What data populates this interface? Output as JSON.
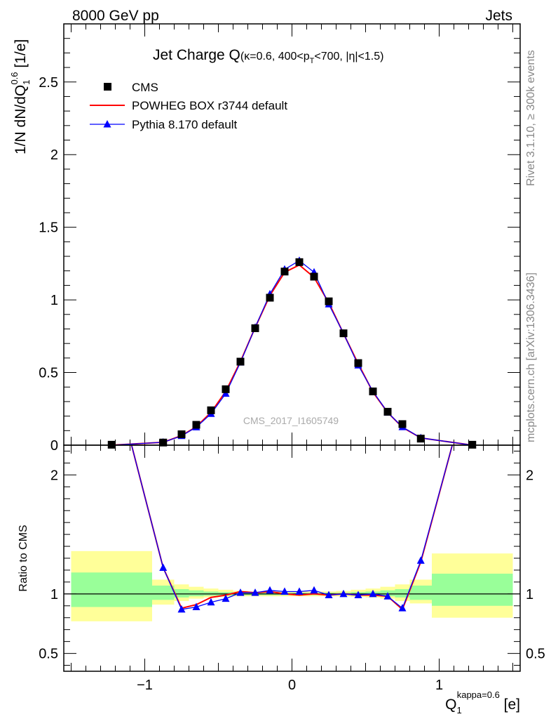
{
  "header": {
    "left": "8000 GeV pp",
    "right": "Jets"
  },
  "side_labels": {
    "rivet": "Rivet 3.1.10, ≥ 300k events",
    "mcplots": "mcplots.cern.ch [arXiv:1306.3436]"
  },
  "watermark": "CMS_2017_I1605749",
  "chart_data": [
    {
      "type": "line",
      "panel": "main",
      "title_main": "Jet Charge Q",
      "title_sub_1": "(κ=0.6, 400<p",
      "title_sub_T": "T",
      "title_sub_2": "<700, |η|<1.5)",
      "ylabel_1": "1/N dN/dQ",
      "ylabel_sub": "1",
      "ylabel_sup": "0.6",
      "ylabel_2": " [1/e]",
      "xlim": [
        -1.55,
        1.55
      ],
      "ylim": [
        0,
        2.9
      ],
      "yticks": [
        {
          "v": 0,
          "label": "0"
        },
        {
          "v": 0.5,
          "label": "0.5"
        },
        {
          "v": 1,
          "label": "1"
        },
        {
          "v": 1.5,
          "label": "1.5"
        },
        {
          "v": 2,
          "label": "2"
        },
        {
          "v": 2.5,
          "label": "2.5"
        }
      ],
      "legend_position": "top-left",
      "x": [
        -1.225,
        -0.875,
        -0.75,
        -0.65,
        -0.55,
        -0.45,
        -0.35,
        -0.25,
        -0.15,
        -0.05,
        0.05,
        0.15,
        0.25,
        0.35,
        0.45,
        0.55,
        0.65,
        0.75,
        0.875,
        1.225
      ],
      "series": [
        {
          "name": "CMS",
          "color": "#000000",
          "marker": "square",
          "values": [
            0.003,
            0.018,
            0.075,
            0.14,
            0.24,
            0.385,
            0.575,
            0.805,
            1.015,
            1.195,
            1.26,
            1.16,
            0.99,
            0.77,
            0.565,
            0.37,
            0.23,
            0.145,
            0.045,
            0.003
          ]
        },
        {
          "name": "POWHEG BOX r3744 default",
          "color": "#ff0000",
          "marker": "none",
          "values": [
            0.0,
            0.02,
            0.066,
            0.126,
            0.225,
            0.37,
            0.575,
            0.81,
            1.03,
            1.19,
            1.24,
            1.155,
            0.98,
            0.768,
            0.56,
            0.365,
            0.225,
            0.123,
            0.05,
            0.0
          ]
        },
        {
          "name": "Pythia 8.170 default",
          "color": "#0000ff",
          "marker": "triangle",
          "values": [
            0.0,
            0.02,
            0.064,
            0.124,
            0.216,
            0.355,
            0.57,
            0.81,
            1.04,
            1.21,
            1.27,
            1.19,
            0.97,
            0.77,
            0.55,
            0.37,
            0.225,
            0.125,
            0.05,
            0.0
          ]
        }
      ]
    },
    {
      "type": "line",
      "panel": "ratio",
      "ylabel": "Ratio to CMS",
      "xlabel_main": "Q",
      "xlabel_sub": "1",
      "xlabel_sup": "kappa=0.6",
      "xlabel_unit": " [e]",
      "xlim": [
        -1.55,
        1.55
      ],
      "ylim": [
        0.35,
        2.25
      ],
      "xticks": [
        {
          "v": -1,
          "label": "−1"
        },
        {
          "v": 0,
          "label": "0"
        },
        {
          "v": 1,
          "label": "1"
        }
      ],
      "yticks": [
        {
          "v": 0.5,
          "label": "0.5"
        },
        {
          "v": 1,
          "label": "1"
        },
        {
          "v": 2,
          "label": "2"
        }
      ],
      "reference": 1.0,
      "bands": {
        "edges": [
          -1.5,
          -0.95,
          -0.8,
          -0.7,
          -0.6,
          -0.5,
          -0.4,
          -0.3,
          -0.2,
          -0.1,
          0.0,
          0.1,
          0.2,
          0.3,
          0.4,
          0.5,
          0.6,
          0.7,
          0.8,
          0.95,
          1.5
        ],
        "inner_color": "#99ff99",
        "outer_color": "#ffff99",
        "inner": [
          [
            0.89,
            1.18
          ],
          [
            0.95,
            1.07
          ],
          [
            0.97,
            1.04
          ],
          [
            0.98,
            1.03
          ],
          [
            0.985,
            1.02
          ],
          [
            0.985,
            1.015
          ],
          [
            0.99,
            1.01
          ],
          [
            0.99,
            1.01
          ],
          [
            0.99,
            1.01
          ],
          [
            0.99,
            1.01
          ],
          [
            0.99,
            1.01
          ],
          [
            0.99,
            1.01
          ],
          [
            0.99,
            1.01
          ],
          [
            0.99,
            1.01
          ],
          [
            0.985,
            1.015
          ],
          [
            0.985,
            1.02
          ],
          [
            0.98,
            1.03
          ],
          [
            0.97,
            1.04
          ],
          [
            0.95,
            1.07
          ],
          [
            0.9,
            1.17
          ]
        ],
        "outer": [
          [
            0.77,
            1.36
          ],
          [
            0.91,
            1.12
          ],
          [
            0.94,
            1.08
          ],
          [
            0.96,
            1.06
          ],
          [
            0.97,
            1.045
          ],
          [
            0.975,
            1.035
          ],
          [
            0.98,
            1.025
          ],
          [
            0.98,
            1.02
          ],
          [
            0.98,
            1.02
          ],
          [
            0.98,
            1.02
          ],
          [
            0.98,
            1.02
          ],
          [
            0.98,
            1.02
          ],
          [
            0.98,
            1.02
          ],
          [
            0.98,
            1.025
          ],
          [
            0.975,
            1.035
          ],
          [
            0.97,
            1.045
          ],
          [
            0.96,
            1.06
          ],
          [
            0.94,
            1.08
          ],
          [
            0.92,
            1.12
          ],
          [
            0.8,
            1.34
          ]
        ]
      },
      "x": [
        -1.1,
        -0.875,
        -0.75,
        -0.65,
        -0.55,
        -0.45,
        -0.35,
        -0.25,
        -0.15,
        -0.05,
        0.05,
        0.15,
        0.25,
        0.35,
        0.45,
        0.55,
        0.65,
        0.75,
        0.875,
        1.1
      ],
      "series": [
        {
          "name": "POWHEG BOX r3744 default",
          "color": "#ff0000",
          "marker": "none",
          "values": [
            2.3,
            1.22,
            0.88,
            0.91,
            0.97,
            0.99,
            1.02,
            1.01,
            1.02,
            1.0,
            0.99,
            1.0,
            0.99,
            1.0,
            0.99,
            0.99,
            0.98,
            0.87,
            1.27,
            2.3
          ]
        },
        {
          "name": "Pythia 8.170 default",
          "color": "#0000ff",
          "marker": "triangle",
          "values": [
            2.3,
            1.22,
            0.87,
            0.89,
            0.93,
            0.96,
            1.01,
            1.01,
            1.03,
            1.02,
            1.02,
            1.03,
            0.99,
            1.0,
            0.99,
            1.0,
            0.98,
            0.88,
            1.28,
            2.3
          ]
        }
      ]
    }
  ]
}
